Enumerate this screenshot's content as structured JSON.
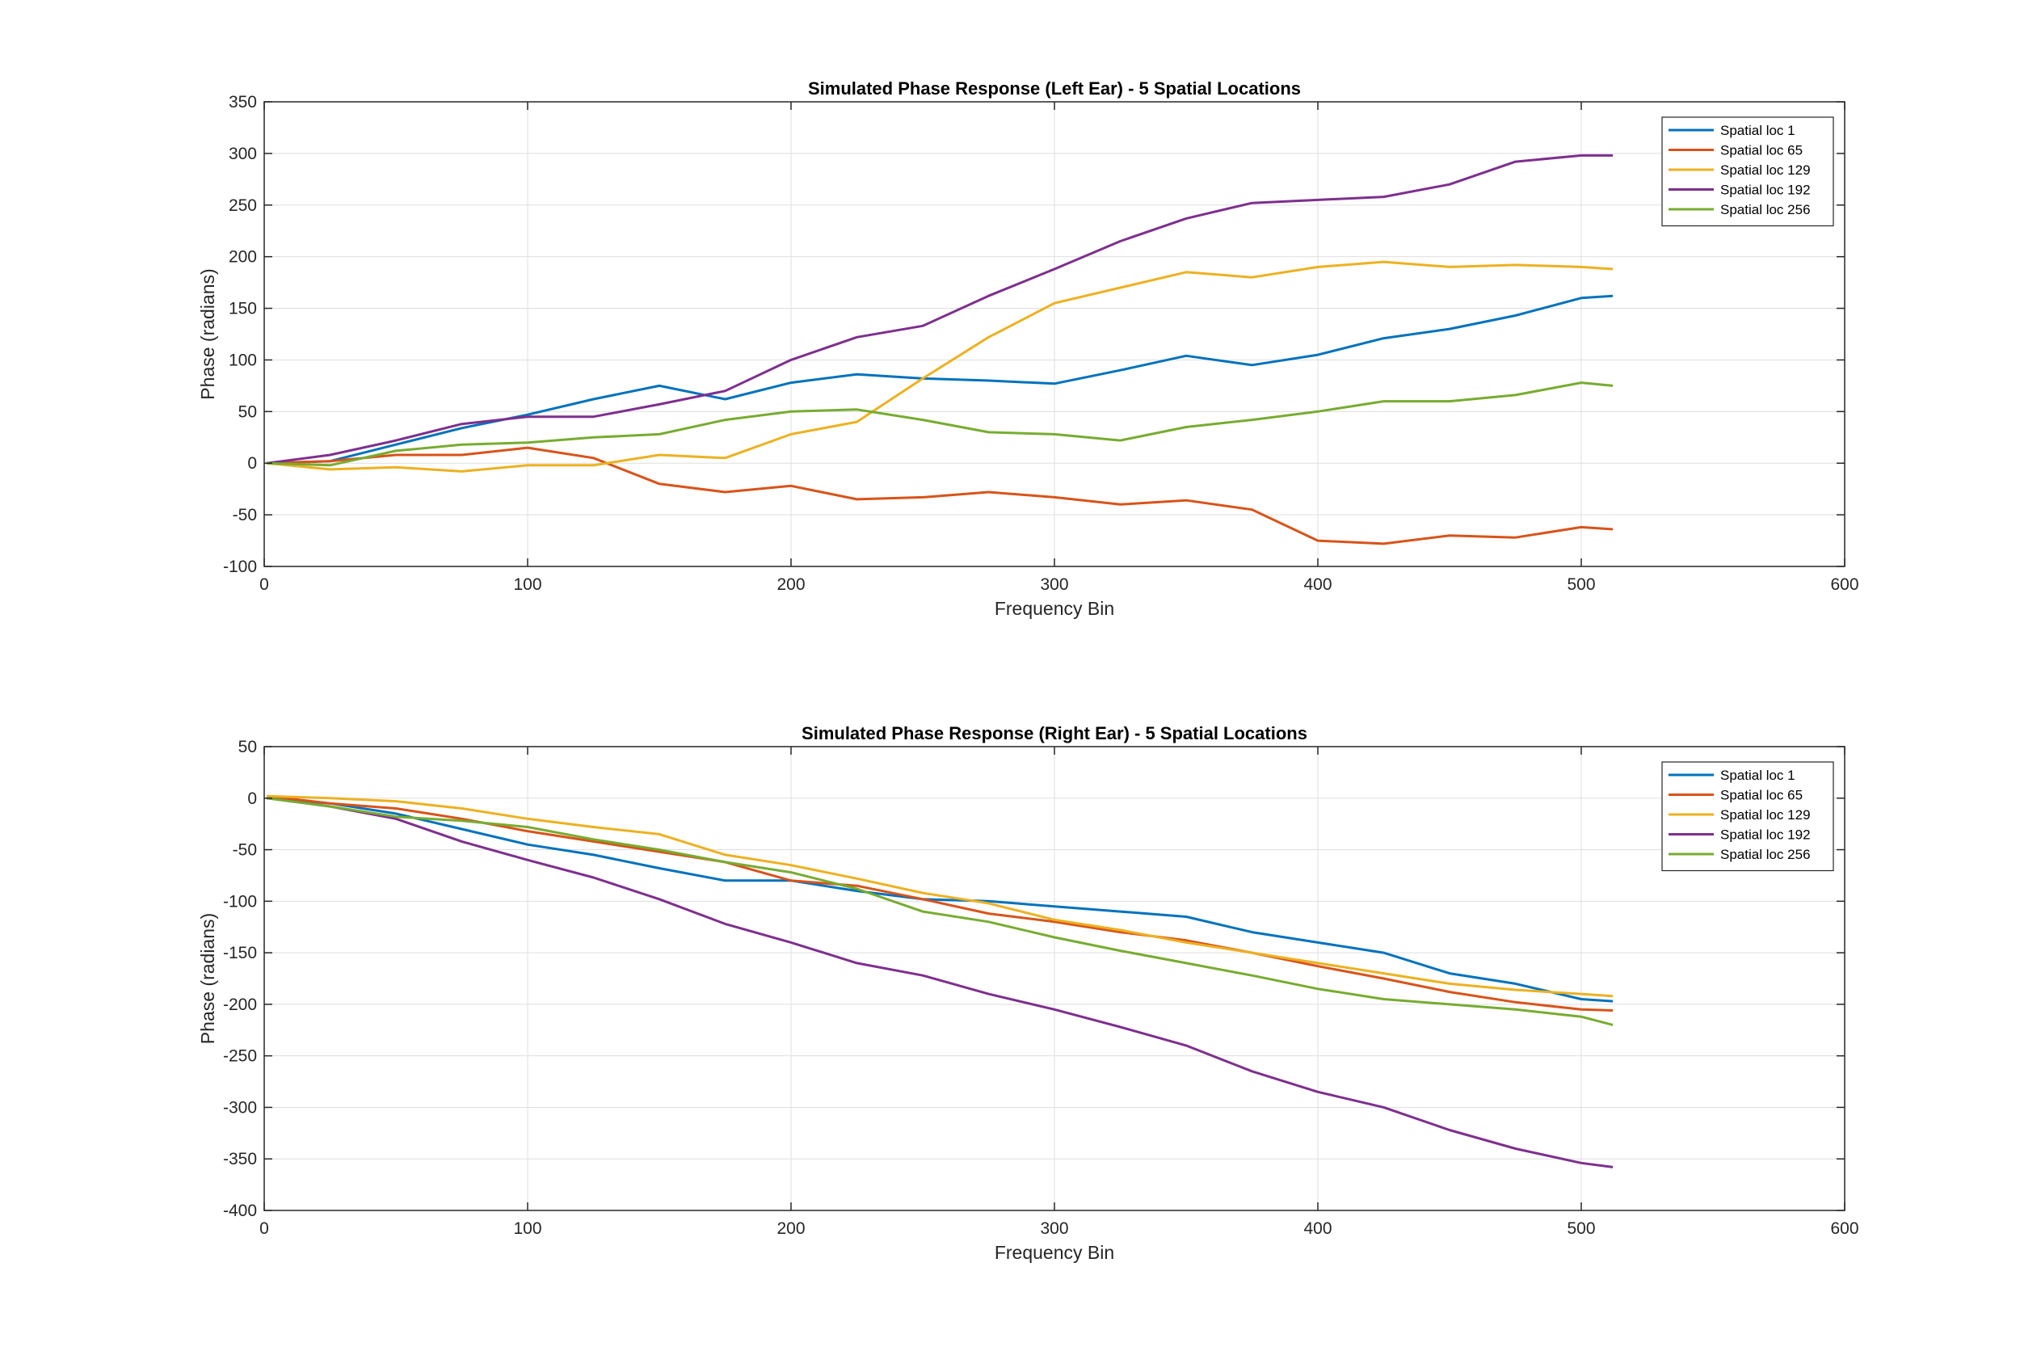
{
  "chart_data": [
    {
      "type": "line",
      "title": "Simulated Phase Response (Left Ear) - 5 Spatial Locations",
      "xlabel": "Frequency Bin",
      "ylabel": "Phase (radians)",
      "xlim": [
        0,
        600
      ],
      "ylim": [
        -100,
        350
      ],
      "xticks": [
        0,
        100,
        200,
        300,
        400,
        500,
        600
      ],
      "yticks": [
        -100,
        -50,
        0,
        50,
        100,
        150,
        200,
        250,
        300,
        350
      ],
      "grid": true,
      "legend_position": "top-right",
      "series": [
        {
          "name": "Spatial loc 1",
          "color": "#0072BD",
          "x": [
            1,
            25,
            50,
            75,
            100,
            125,
            150,
            175,
            200,
            225,
            250,
            275,
            300,
            325,
            350,
            375,
            400,
            425,
            450,
            475,
            500,
            512
          ],
          "y": [
            0,
            2,
            18,
            34,
            47,
            62,
            75,
            62,
            78,
            86,
            82,
            80,
            77,
            90,
            104,
            95,
            105,
            121,
            130,
            143,
            160,
            162
          ]
        },
        {
          "name": "Spatial loc 65",
          "color": "#D95319",
          "x": [
            1,
            25,
            50,
            75,
            100,
            125,
            150,
            175,
            200,
            225,
            250,
            275,
            300,
            325,
            350,
            375,
            400,
            425,
            450,
            475,
            500,
            512
          ],
          "y": [
            0,
            2,
            8,
            8,
            15,
            5,
            -20,
            -28,
            -22,
            -35,
            -33,
            -28,
            -33,
            -40,
            -36,
            -45,
            -75,
            -78,
            -70,
            -72,
            -62,
            -64
          ]
        },
        {
          "name": "Spatial loc 129",
          "color": "#EDB120",
          "x": [
            1,
            25,
            50,
            75,
            100,
            125,
            150,
            175,
            200,
            225,
            250,
            275,
            300,
            325,
            350,
            375,
            400,
            425,
            450,
            475,
            500,
            512
          ],
          "y": [
            0,
            -6,
            -4,
            -8,
            -2,
            -2,
            8,
            5,
            28,
            40,
            82,
            122,
            155,
            170,
            185,
            180,
            190,
            195,
            190,
            192,
            190,
            188
          ]
        },
        {
          "name": "Spatial loc 192",
          "color": "#7E2F8E",
          "x": [
            1,
            25,
            50,
            75,
            100,
            125,
            150,
            175,
            200,
            225,
            250,
            275,
            300,
            325,
            350,
            375,
            400,
            425,
            450,
            475,
            500,
            512
          ],
          "y": [
            0,
            8,
            22,
            38,
            45,
            45,
            57,
            70,
            100,
            122,
            133,
            162,
            188,
            215,
            237,
            252,
            255,
            258,
            270,
            292,
            298,
            298
          ]
        },
        {
          "name": "Spatial loc 256",
          "color": "#77AC30",
          "x": [
            1,
            25,
            50,
            75,
            100,
            125,
            150,
            175,
            200,
            225,
            250,
            275,
            300,
            325,
            350,
            375,
            400,
            425,
            450,
            475,
            500,
            512
          ],
          "y": [
            0,
            -2,
            12,
            18,
            20,
            25,
            28,
            42,
            50,
            52,
            42,
            30,
            28,
            22,
            35,
            42,
            50,
            60,
            60,
            66,
            78,
            75
          ]
        }
      ]
    },
    {
      "type": "line",
      "title": "Simulated Phase Response (Right Ear) - 5 Spatial Locations",
      "xlabel": "Frequency Bin",
      "ylabel": "Phase (radians)",
      "xlim": [
        0,
        600
      ],
      "ylim": [
        -400,
        50
      ],
      "xticks": [
        0,
        100,
        200,
        300,
        400,
        500,
        600
      ],
      "yticks": [
        -400,
        -350,
        -300,
        -250,
        -200,
        -150,
        -100,
        -50,
        0,
        50
      ],
      "grid": true,
      "legend_position": "top-right",
      "series": [
        {
          "name": "Spatial loc 1",
          "color": "#0072BD",
          "x": [
            1,
            25,
            50,
            75,
            100,
            125,
            150,
            175,
            200,
            225,
            250,
            275,
            300,
            325,
            350,
            375,
            400,
            425,
            450,
            475,
            500,
            512
          ],
          "y": [
            0,
            -5,
            -15,
            -30,
            -45,
            -55,
            -68,
            -80,
            -80,
            -90,
            -98,
            -100,
            -105,
            -110,
            -115,
            -130,
            -140,
            -150,
            -170,
            -180,
            -195,
            -197
          ]
        },
        {
          "name": "Spatial loc 65",
          "color": "#D95319",
          "x": [
            1,
            25,
            50,
            75,
            100,
            125,
            150,
            175,
            200,
            225,
            250,
            275,
            300,
            325,
            350,
            375,
            400,
            425,
            450,
            475,
            500,
            512
          ],
          "y": [
            2,
            -5,
            -10,
            -20,
            -32,
            -42,
            -52,
            -62,
            -80,
            -85,
            -98,
            -112,
            -120,
            -130,
            -138,
            -150,
            -163,
            -175,
            -188,
            -198,
            -205,
            -206
          ]
        },
        {
          "name": "Spatial loc 129",
          "color": "#EDB120",
          "x": [
            1,
            25,
            50,
            75,
            100,
            125,
            150,
            175,
            200,
            225,
            250,
            275,
            300,
            325,
            350,
            375,
            400,
            425,
            450,
            475,
            500,
            512
          ],
          "y": [
            2,
            0,
            -3,
            -10,
            -20,
            -28,
            -35,
            -55,
            -65,
            -78,
            -92,
            -102,
            -118,
            -128,
            -140,
            -150,
            -160,
            -170,
            -180,
            -186,
            -190,
            -192
          ]
        },
        {
          "name": "Spatial loc 192",
          "color": "#7E2F8E",
          "x": [
            1,
            25,
            50,
            75,
            100,
            125,
            150,
            175,
            200,
            225,
            250,
            275,
            300,
            325,
            350,
            375,
            400,
            425,
            450,
            475,
            500,
            512
          ],
          "y": [
            0,
            -8,
            -20,
            -42,
            -60,
            -77,
            -98,
            -122,
            -140,
            -160,
            -172,
            -190,
            -205,
            -222,
            -240,
            -265,
            -285,
            -300,
            -322,
            -340,
            -354,
            -358
          ]
        },
        {
          "name": "Spatial loc 256",
          "color": "#77AC30",
          "x": [
            1,
            25,
            50,
            75,
            100,
            125,
            150,
            175,
            200,
            225,
            250,
            275,
            300,
            325,
            350,
            375,
            400,
            425,
            450,
            475,
            500,
            512
          ],
          "y": [
            0,
            -8,
            -18,
            -22,
            -28,
            -40,
            -50,
            -62,
            -72,
            -88,
            -110,
            -120,
            -135,
            -148,
            -160,
            -172,
            -185,
            -195,
            -200,
            -205,
            -212,
            -220
          ]
        }
      ]
    }
  ]
}
